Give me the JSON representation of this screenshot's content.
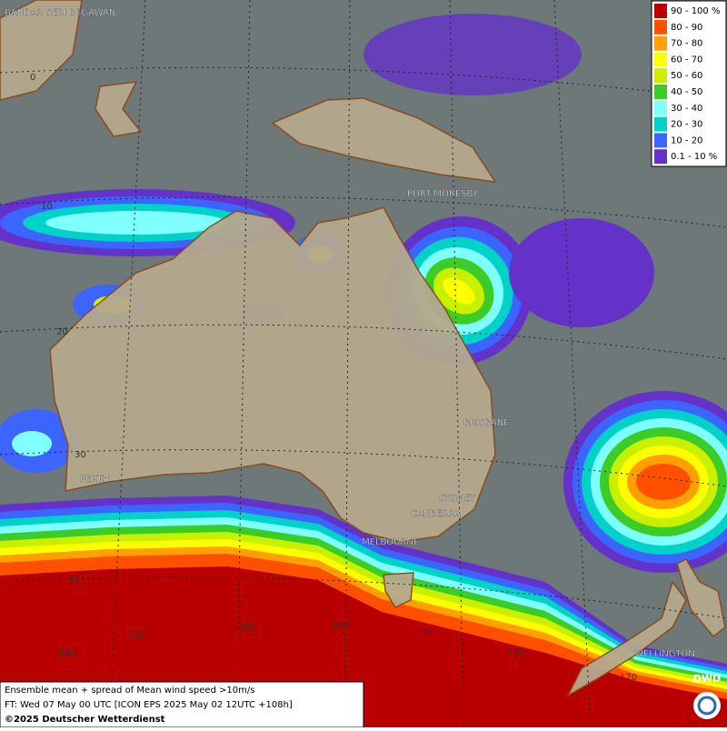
{
  "legend": {
    "items": [
      {
        "label": "90 - 100 %",
        "color": "#b80000"
      },
      {
        "label": "80 - 90",
        "color": "#ff5000"
      },
      {
        "label": "70 - 80",
        "color": "#ffa000"
      },
      {
        "label": "60 - 70",
        "color": "#ffff00"
      },
      {
        "label": "50 - 60",
        "color": "#c8f000"
      },
      {
        "label": "40 - 50",
        "color": "#3ccc28"
      },
      {
        "label": "30 - 40",
        "color": "#80ffff"
      },
      {
        "label": "20 - 30",
        "color": "#00d2c8"
      },
      {
        "label": "10 - 20",
        "color": "#3c64ff"
      },
      {
        "label": "0.1 - 10 %",
        "color": "#6432c8"
      }
    ]
  },
  "places": [
    "BANDAR SERI BEGAWAN",
    "PORT MORESBY",
    "BRISBANE",
    "PERTH",
    "SYDNEY",
    "CANBERRA",
    "MELBOURNE",
    "WELLINGTON"
  ],
  "grid_labels": {
    "lat": [
      "0",
      "10",
      "20",
      "30",
      "40"
    ],
    "lon": [
      "110",
      "120",
      "130",
      "140",
      "150",
      "160",
      "170"
    ]
  },
  "footer": {
    "line1": "Ensemble mean + spread of Mean wind speed >10m/s",
    "line2": "FT: Wed 07 May 00 UTC [ICON EPS 2025 May 02 12UTC +108h]",
    "line3": "©2025 Deutscher Wetterdienst"
  },
  "logo": "DWD"
}
